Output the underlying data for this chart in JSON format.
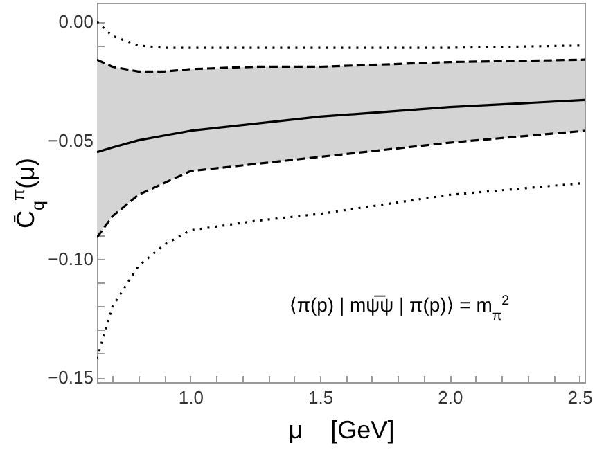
{
  "chart_data": {
    "type": "line",
    "xlabel": "μ    [GeV]",
    "ylabel": "C̄$_{q}$$^{π}$(μ)",
    "annotations": [
      "⟨π(p) | mψ̅ψ | π(p)⟩ = m$_{π}$$^{2}$"
    ],
    "x": [
      0.64,
      0.7,
      0.8,
      0.9,
      1.0,
      1.25,
      1.5,
      2.0,
      2.52
    ],
    "series": [
      {
        "color": "#000000",
        "line_style": "solid",
        "values": [
          -0.055,
          -0.053,
          -0.05,
          -0.048,
          -0.046,
          -0.043,
          -0.04,
          -0.036,
          -0.033
        ],
        "lower": [
          -0.091,
          -0.082,
          -0.073,
          -0.068,
          -0.063,
          -0.06,
          -0.057,
          -0.051,
          -0.046
        ],
        "upper": [
          -0.016,
          -0.019,
          -0.021,
          -0.021,
          -0.02,
          -0.019,
          -0.019,
          -0.017,
          -0.016
        ]
      },
      {
        "color": "#000000",
        "line_style": "dashed",
        "values": [
          -0.091,
          -0.082,
          -0.073,
          -0.068,
          -0.063,
          -0.06,
          -0.057,
          -0.051,
          -0.046
        ]
      },
      {
        "color": "#000000",
        "line_style": "dashed",
        "values": [
          -0.016,
          -0.019,
          -0.021,
          -0.021,
          -0.02,
          -0.019,
          -0.019,
          -0.017,
          -0.016
        ]
      },
      {
        "color": "#000000",
        "line_style": "dotted",
        "values": [
          0.0,
          -0.006,
          -0.01,
          -0.011,
          -0.011,
          -0.011,
          -0.011,
          -0.011,
          -0.01
        ]
      },
      {
        "color": "#000000",
        "line_style": "dotted",
        "values": [
          -0.142,
          -0.12,
          -0.103,
          -0.094,
          -0.088,
          -0.084,
          -0.081,
          -0.073,
          -0.068
        ]
      }
    ],
    "xlim": [
      0.64,
      2.52
    ],
    "ylim": [
      -0.152,
      0.008
    ],
    "xticks": [
      {
        "value": 0.7,
        "label": null
      },
      {
        "value": 0.8,
        "label": null
      },
      {
        "value": 0.9,
        "label": null
      },
      {
        "value": 1.0,
        "label": "1.0"
      },
      {
        "value": 1.1,
        "label": null
      },
      {
        "value": 1.2,
        "label": null
      },
      {
        "value": 1.3,
        "label": null
      },
      {
        "value": 1.4,
        "label": null
      },
      {
        "value": 1.5,
        "label": "1.5"
      },
      {
        "value": 1.6,
        "label": null
      },
      {
        "value": 1.7,
        "label": null
      },
      {
        "value": 1.8,
        "label": null
      },
      {
        "value": 1.9,
        "label": null
      },
      {
        "value": 2.0,
        "label": "2.0"
      },
      {
        "value": 2.1,
        "label": null
      },
      {
        "value": 2.2,
        "label": null
      },
      {
        "value": 2.3,
        "label": null
      },
      {
        "value": 2.4,
        "label": null
      },
      {
        "value": 2.5,
        "label": "2.5"
      }
    ],
    "yticks": [
      {
        "value": 0,
        "label": "0.00"
      },
      {
        "value": -0.01,
        "label": null
      },
      {
        "value": -0.02,
        "label": null
      },
      {
        "value": -0.03,
        "label": null
      },
      {
        "value": -0.04,
        "label": null
      },
      {
        "value": -0.05,
        "label": "−0.05"
      },
      {
        "value": -0.06,
        "label": null
      },
      {
        "value": -0.07,
        "label": null
      },
      {
        "value": -0.08,
        "label": null
      },
      {
        "value": -0.09,
        "label": null
      },
      {
        "value": -0.1,
        "label": "−0.10"
      },
      {
        "value": -0.11,
        "label": null
      },
      {
        "value": -0.12,
        "label": null
      },
      {
        "value": -0.13,
        "label": null
      },
      {
        "value": -0.14,
        "label": null
      },
      {
        "value": -0.15,
        "label": "−0.15"
      }
    ],
    "grid": false
  }
}
